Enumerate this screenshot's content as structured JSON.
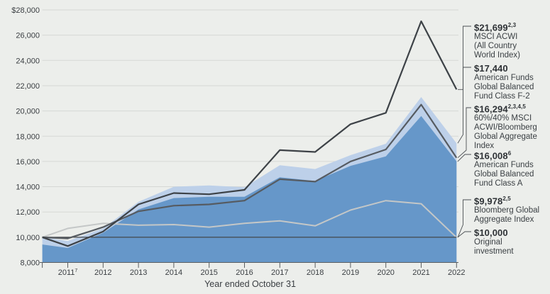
{
  "chart_data": {
    "type": "area",
    "title": "",
    "xlabel": "Year ended October 31",
    "ylim": [
      8000,
      28000
    ],
    "grid_values": [
      28000,
      26000,
      24000,
      22000,
      20000,
      18000,
      16000,
      14000,
      12000
    ],
    "y_ticks": [
      {
        "label": "$28,000",
        "value": 28000
      },
      {
        "label": "26,000",
        "value": 26000
      },
      {
        "label": "24,000",
        "value": 24000
      },
      {
        "label": "22,000",
        "value": 22000
      },
      {
        "label": "20,000",
        "value": 20000
      },
      {
        "label": "18,000",
        "value": 18000
      },
      {
        "label": "16,000",
        "value": 16000
      },
      {
        "label": "14,000",
        "value": 14000
      },
      {
        "label": "12,000",
        "value": 12000
      },
      {
        "label": "10,000",
        "value": 10000
      },
      {
        "label": "8,000",
        "value": 8000
      }
    ],
    "x_ticks": [
      {
        "label": "2011",
        "sup": "7",
        "x": 0
      },
      {
        "label": "2012",
        "sup": "",
        "x": 1
      },
      {
        "label": "2013",
        "sup": "",
        "x": 2
      },
      {
        "label": "2014",
        "sup": "",
        "x": 3
      },
      {
        "label": "2015",
        "sup": "",
        "x": 4
      },
      {
        "label": "2016",
        "sup": "",
        "x": 5
      },
      {
        "label": "2017",
        "sup": "",
        "x": 6
      },
      {
        "label": "2018",
        "sup": "",
        "x": 7
      },
      {
        "label": "2019",
        "sup": "",
        "x": 8
      },
      {
        "label": "2020",
        "sup": "",
        "x": 9
      },
      {
        "label": "2021",
        "sup": "",
        "x": 10
      },
      {
        "label": "2022",
        "sup": "",
        "x": 11
      }
    ],
    "x_offsets": [
      -0.72,
      0,
      1,
      2,
      3,
      4,
      5,
      6,
      7,
      8,
      9,
      10,
      11
    ],
    "series": [
      {
        "name": "American Funds Global Balanced Fund Class F-2",
        "kind": "area",
        "color": "#bdd0e9",
        "values": [
          10000,
          9700,
          10700,
          12800,
          14000,
          14100,
          13950,
          15700,
          15400,
          16500,
          17400,
          21100,
          17440
        ]
      },
      {
        "name": "American Funds Global Balanced Fund Class A",
        "kind": "area",
        "color": "#6697c9",
        "values": [
          9425,
          9150,
          10350,
          12200,
          13100,
          13200,
          13200,
          14750,
          14450,
          15650,
          16400,
          19600,
          16008
        ]
      },
      {
        "name": "Bloomberg Global Aggregate Index",
        "kind": "line",
        "color": "#c4c7c7",
        "width": 2,
        "values": [
          10000,
          10700,
          11100,
          10950,
          11000,
          10800,
          11100,
          11300,
          10900,
          12150,
          12900,
          12650,
          9978
        ]
      },
      {
        "name": "Original investment",
        "kind": "line",
        "color": "#43474a",
        "width": 1.3,
        "values": [
          10000,
          10000,
          10000,
          10000,
          10000,
          10000,
          10000,
          10000,
          10000,
          10000,
          10000,
          10000,
          10000
        ]
      },
      {
        "name": "60%/40% MSCI ACWI/Bloomberg Global Aggregate Index",
        "kind": "line",
        "color": "#565b61",
        "width": 2.2,
        "values": [
          10000,
          9900,
          10800,
          12050,
          12500,
          12600,
          12900,
          14600,
          14400,
          16000,
          16950,
          20500,
          16294
        ]
      },
      {
        "name": "MSCI ACWI (All Country World Index)",
        "kind": "line",
        "color": "#3d4247",
        "width": 2.2,
        "values": [
          10000,
          9300,
          10450,
          12600,
          13500,
          13400,
          13750,
          16900,
          16750,
          18950,
          19850,
          27100,
          21699
        ]
      }
    ],
    "end_labels": [
      {
        "value": "$21,699",
        "sup": "2,3",
        "end_value": 21699,
        "desc": [
          "MSCI ACWI",
          "(All Country",
          "World Index)"
        ]
      },
      {
        "value": "$17,440",
        "sup": "",
        "end_value": 17440,
        "desc": [
          "American Funds",
          "Global Balanced",
          "Fund Class F-2"
        ]
      },
      {
        "value": "$16,294",
        "sup": "2,3,4,5",
        "end_value": 16294,
        "desc": [
          "60%/40% MSCI",
          "ACWI/Bloomberg",
          "Global Aggregate",
          "Index"
        ]
      },
      {
        "value": "$16,008",
        "sup": "6",
        "end_value": 16008,
        "desc": [
          "American Funds",
          "Global Balanced",
          "Fund Class A"
        ]
      },
      {
        "value": "$9,978",
        "sup": "2,5",
        "end_value": 9978,
        "desc": [
          "Bloomberg Global",
          "Aggregate Index"
        ]
      },
      {
        "value": "$10,000",
        "sup": "",
        "end_value": 10000,
        "desc": [
          "Original",
          "investment"
        ]
      }
    ],
    "colors": {
      "background": "#eceeeb",
      "gridline": "#d6d8d5",
      "axis": "#5a5e61",
      "text": "#3a3e42",
      "leader": "#4c5054"
    }
  }
}
